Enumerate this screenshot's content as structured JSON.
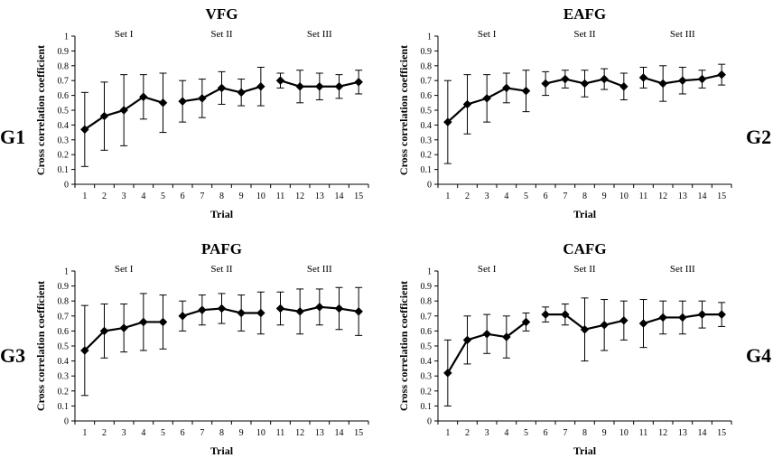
{
  "groups": [
    "G1",
    "G2",
    "G3",
    "G4"
  ],
  "chart_data": [
    {
      "type": "line",
      "title": "VFG",
      "group": "G1",
      "xlabel": "Trial",
      "ylabel": "Cross correlation coefficient",
      "ylim": [
        0,
        1
      ],
      "yticks": [
        "0",
        "0.1",
        "0.2",
        "0.3",
        "0.4",
        "0.5",
        "0.6",
        "0.7",
        "0.8",
        "0.9",
        "1"
      ],
      "set_labels": [
        "Set I",
        "Set II",
        "Set III"
      ],
      "series": [
        {
          "name": "Set I",
          "x": [
            1,
            2,
            3,
            4,
            5
          ],
          "values": [
            0.37,
            0.46,
            0.5,
            0.59,
            0.55
          ],
          "err": [
            0.25,
            0.23,
            0.24,
            0.15,
            0.2
          ]
        },
        {
          "name": "Set II",
          "x": [
            6,
            7,
            8,
            9,
            10
          ],
          "values": [
            0.56,
            0.58,
            0.65,
            0.62,
            0.66
          ],
          "err": [
            0.14,
            0.13,
            0.11,
            0.09,
            0.13
          ]
        },
        {
          "name": "Set III",
          "x": [
            11,
            12,
            13,
            14,
            15
          ],
          "values": [
            0.7,
            0.66,
            0.66,
            0.66,
            0.69
          ],
          "err": [
            0.05,
            0.11,
            0.09,
            0.08,
            0.08
          ]
        }
      ]
    },
    {
      "type": "line",
      "title": "EAFG",
      "group": "G2",
      "xlabel": "Trial",
      "ylabel": "Cross correlation coefficient",
      "ylim": [
        0,
        1
      ],
      "yticks": [
        "0",
        "0.1",
        "0.2",
        "0.3",
        "0.4",
        "0.5",
        "0.6",
        "0.7",
        "0.8",
        "0.9",
        "1"
      ],
      "set_labels": [
        "Set I",
        "Set II",
        "Set III"
      ],
      "series": [
        {
          "name": "Set I",
          "x": [
            1,
            2,
            3,
            4,
            5
          ],
          "values": [
            0.42,
            0.54,
            0.58,
            0.65,
            0.63
          ],
          "err": [
            0.28,
            0.2,
            0.16,
            0.1,
            0.14
          ]
        },
        {
          "name": "Set II",
          "x": [
            6,
            7,
            8,
            9,
            10
          ],
          "values": [
            0.68,
            0.71,
            0.68,
            0.71,
            0.66
          ],
          "err": [
            0.08,
            0.06,
            0.09,
            0.07,
            0.09
          ]
        },
        {
          "name": "Set III",
          "x": [
            11,
            12,
            13,
            14,
            15
          ],
          "values": [
            0.72,
            0.68,
            0.7,
            0.71,
            0.74
          ],
          "err": [
            0.07,
            0.12,
            0.09,
            0.06,
            0.07
          ]
        }
      ]
    },
    {
      "type": "line",
      "title": "PAFG",
      "group": "G3",
      "xlabel": "Trial",
      "ylabel": "Cross correlation coefficient",
      "ylim": [
        0,
        1
      ],
      "yticks": [
        "0",
        "0.1",
        "0.2",
        "0.3",
        "0.4",
        "0.5",
        "0.6",
        "0.7",
        "0.8",
        "0.9",
        "1"
      ],
      "set_labels": [
        "Set I",
        "Set II",
        "Set III"
      ],
      "series": [
        {
          "name": "Set I",
          "x": [
            1,
            2,
            3,
            4,
            5
          ],
          "values": [
            0.47,
            0.6,
            0.62,
            0.66,
            0.66
          ],
          "err": [
            0.3,
            0.18,
            0.16,
            0.19,
            0.18
          ]
        },
        {
          "name": "Set II",
          "x": [
            6,
            7,
            8,
            9,
            10
          ],
          "values": [
            0.7,
            0.74,
            0.75,
            0.72,
            0.72
          ],
          "err": [
            0.1,
            0.1,
            0.1,
            0.12,
            0.14
          ]
        },
        {
          "name": "Set III",
          "x": [
            11,
            12,
            13,
            14,
            15
          ],
          "values": [
            0.75,
            0.73,
            0.76,
            0.75,
            0.73
          ],
          "err": [
            0.11,
            0.15,
            0.12,
            0.14,
            0.16
          ]
        }
      ]
    },
    {
      "type": "line",
      "title": "CAFG",
      "group": "G4",
      "xlabel": "Trial",
      "ylabel": "Cross correlation coefficient",
      "ylim": [
        0,
        1
      ],
      "yticks": [
        "0",
        "0.1",
        "0.2",
        "0.3",
        "0.4",
        "0.5",
        "0.6",
        "0.7",
        "0.8",
        "0.9",
        "1"
      ],
      "set_labels": [
        "Set I",
        "Set II",
        "Set III"
      ],
      "series": [
        {
          "name": "Set I",
          "x": [
            1,
            2,
            3,
            4,
            5
          ],
          "values": [
            0.32,
            0.54,
            0.58,
            0.56,
            0.66
          ],
          "err": [
            0.22,
            0.16,
            0.13,
            0.14,
            0.06
          ]
        },
        {
          "name": "Set II",
          "x": [
            6,
            7,
            8,
            9,
            10
          ],
          "values": [
            0.71,
            0.71,
            0.61,
            0.64,
            0.67
          ],
          "err": [
            0.05,
            0.07,
            0.21,
            0.17,
            0.13
          ]
        },
        {
          "name": "Set III",
          "x": [
            11,
            12,
            13,
            14,
            15
          ],
          "values": [
            0.65,
            0.69,
            0.69,
            0.71,
            0.71
          ],
          "err": [
            0.16,
            0.11,
            0.11,
            0.09,
            0.08
          ]
        }
      ]
    }
  ]
}
